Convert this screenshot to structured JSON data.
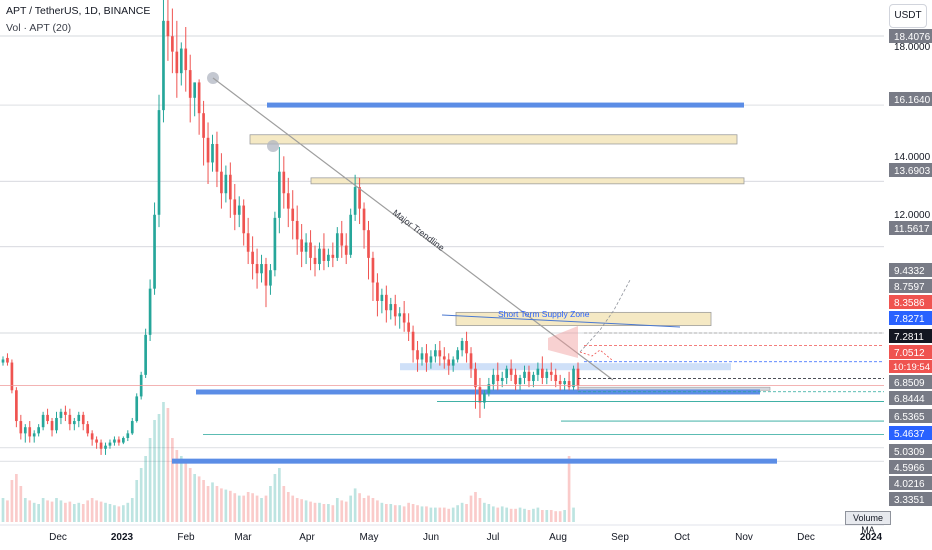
{
  "header": {
    "symbol_line": "APT / TetherUS, 1D, BINANCE",
    "volume_line": "Vol · APT (20)"
  },
  "toolbar": {
    "unit_label": "USDT"
  },
  "volume_ma_label": "Volume MA",
  "countdown": "10:19:54",
  "colors": {
    "up": "#26a69a",
    "down": "#ef5350",
    "blue_zone": "#5b8de6",
    "yellow_zone": "#f5e9c4",
    "trendline": "#9e9e9e"
  },
  "chart_data": {
    "type": "candlestick",
    "title": "APT / TetherUS, 1D, BINANCE",
    "x_ticks": [
      "Dec",
      "2023",
      "Feb",
      "Mar",
      "Apr",
      "May",
      "Jun",
      "Jul",
      "Aug",
      "Sep",
      "Oct",
      "Nov",
      "Dec",
      "2024"
    ],
    "y_range": [
      3.0,
      20.0
    ],
    "price_labels": [
      {
        "value": "18.4076",
        "style": "gray"
      },
      {
        "value": "18.0000",
        "style": "plain"
      },
      {
        "value": "16.1640",
        "style": "gray"
      },
      {
        "value": "14.0000",
        "style": "plain"
      },
      {
        "value": "13.6903",
        "style": "gray"
      },
      {
        "value": "12.0000",
        "style": "plain"
      },
      {
        "value": "11.5617",
        "style": "gray"
      },
      {
        "value": "9.4332",
        "style": "gray"
      },
      {
        "value": "8.7597",
        "style": "gray"
      },
      {
        "value": "8.3586",
        "style": "red"
      },
      {
        "value": "7.8271",
        "style": "blue"
      },
      {
        "value": "7.2811",
        "style": "dark"
      },
      {
        "value": "7.0512",
        "style": "red"
      },
      {
        "value": "6.8509",
        "style": "gray"
      },
      {
        "value": "6.8444",
        "style": "gray"
      },
      {
        "value": "6.5365",
        "style": "gray"
      },
      {
        "value": "5.4637",
        "style": "blue"
      },
      {
        "value": "5.0309",
        "style": "gray"
      },
      {
        "value": "4.5966",
        "style": "gray"
      },
      {
        "value": "4.0216",
        "style": "gray"
      },
      {
        "value": "3.3351",
        "style": "gray"
      }
    ],
    "zones": [
      {
        "kind": "blue",
        "price": 16.164
      },
      {
        "kind": "yellow",
        "price_low": 14.9,
        "price_high": 15.2
      },
      {
        "kind": "yellow",
        "price_low": 13.65,
        "price_high": 13.8
      },
      {
        "kind": "yellow",
        "price_low": 9.0,
        "price_high": 9.43
      },
      {
        "kind": "light-blue",
        "price_low": 7.55,
        "price_high": 7.78
      },
      {
        "kind": "gray",
        "price_low": 6.9,
        "price_high": 7.0
      },
      {
        "kind": "blue",
        "price": 6.844
      },
      {
        "kind": "blue",
        "price": 4.597
      }
    ],
    "annotations": [
      "Major Trendline",
      "Short Term Supply Zone"
    ],
    "candles": [
      [
        7.8,
        8.0,
        7.9,
        7.7
      ],
      [
        7.95,
        8.1,
        7.8,
        7.7
      ],
      [
        7.8,
        7.9,
        6.9,
        6.8
      ],
      [
        6.9,
        7.0,
        5.9,
        5.7
      ],
      [
        5.9,
        6.1,
        5.5,
        5.3
      ],
      [
        5.5,
        5.8,
        5.7,
        5.2
      ],
      [
        5.7,
        5.9,
        5.4,
        5.2
      ],
      [
        5.4,
        5.6,
        5.5,
        5.2
      ],
      [
        5.5,
        5.8,
        5.7,
        5.4
      ],
      [
        5.7,
        6.2,
        6.1,
        5.6
      ],
      [
        6.1,
        6.3,
        5.9,
        5.8
      ],
      [
        5.9,
        6.0,
        5.6,
        5.4
      ],
      [
        5.6,
        6.2,
        6.0,
        5.5
      ],
      [
        6.0,
        6.3,
        6.2,
        5.8
      ],
      [
        6.2,
        6.4,
        6.1,
        5.9
      ],
      [
        6.1,
        6.3,
        5.8,
        5.6
      ],
      [
        5.8,
        6.0,
        5.9,
        5.6
      ],
      [
        5.9,
        6.2,
        6.1,
        5.7
      ],
      [
        6.1,
        6.2,
        5.8,
        5.6
      ],
      [
        5.8,
        5.9,
        5.5,
        5.4
      ],
      [
        5.5,
        5.6,
        5.3,
        5.1
      ],
      [
        5.3,
        5.4,
        5.2,
        5.0
      ],
      [
        5.2,
        5.3,
        5.0,
        4.8
      ],
      [
        5.0,
        5.2,
        5.1,
        4.8
      ],
      [
        5.1,
        5.3,
        5.2,
        5.0
      ],
      [
        5.2,
        5.4,
        5.3,
        5.1
      ],
      [
        5.3,
        5.4,
        5.2,
        5.1
      ],
      [
        5.2,
        5.4,
        5.35,
        5.15
      ],
      [
        5.35,
        5.6,
        5.5,
        5.25
      ],
      [
        5.5,
        6.0,
        5.9,
        5.45
      ],
      [
        5.9,
        6.8,
        6.7,
        5.85
      ],
      [
        6.7,
        7.5,
        7.4,
        6.6
      ],
      [
        7.4,
        8.9,
        8.7,
        7.3
      ],
      [
        8.7,
        10.5,
        10.2,
        8.5
      ],
      [
        10.2,
        13.0,
        12.6,
        10.0
      ],
      [
        12.6,
        16.5,
        16.0,
        12.2
      ],
      [
        16.0,
        19.8,
        18.9,
        15.6
      ],
      [
        18.9,
        20.0,
        18.4,
        17.6
      ],
      [
        18.4,
        19.3,
        17.9,
        17.2
      ],
      [
        17.9,
        18.9,
        17.2,
        16.4
      ],
      [
        17.2,
        18.2,
        18.0,
        16.8
      ],
      [
        18.0,
        18.7,
        17.3,
        16.6
      ],
      [
        17.3,
        17.8,
        16.4,
        15.6
      ],
      [
        16.4,
        16.9,
        16.9,
        15.8
      ],
      [
        16.9,
        17.0,
        15.9,
        15.2
      ],
      [
        15.9,
        16.3,
        15.1,
        14.2
      ],
      [
        15.1,
        15.6,
        14.3,
        13.6
      ],
      [
        14.3,
        15.2,
        14.9,
        14.0
      ],
      [
        14.9,
        15.3,
        14.0,
        13.5
      ],
      [
        14.0,
        14.6,
        13.3,
        12.8
      ],
      [
        13.3,
        14.2,
        13.9,
        13.0
      ],
      [
        13.9,
        14.3,
        13.1,
        12.5
      ],
      [
        13.1,
        13.6,
        12.6,
        12.1
      ],
      [
        12.6,
        13.2,
        12.9,
        12.2
      ],
      [
        12.9,
        13.1,
        12.0,
        11.6
      ],
      [
        12.0,
        12.5,
        11.4,
        11.0
      ],
      [
        11.4,
        11.9,
        11.0,
        10.5
      ],
      [
        11.0,
        11.5,
        10.7,
        10.2
      ],
      [
        10.7,
        11.3,
        11.0,
        10.4
      ],
      [
        11.0,
        11.2,
        10.3,
        9.6
      ],
      [
        10.3,
        11.0,
        10.8,
        10.0
      ],
      [
        10.8,
        12.7,
        12.5,
        10.6
      ],
      [
        12.5,
        14.8,
        14.0,
        12.0
      ],
      [
        14.0,
        14.5,
        13.3,
        12.8
      ],
      [
        13.3,
        13.8,
        12.8,
        12.2
      ],
      [
        12.8,
        13.4,
        12.4,
        11.8
      ],
      [
        12.4,
        12.9,
        11.8,
        11.3
      ],
      [
        11.8,
        12.3,
        11.4,
        10.9
      ],
      [
        11.4,
        12.0,
        11.7,
        11.0
      ],
      [
        11.7,
        12.1,
        11.2,
        10.8
      ],
      [
        11.2,
        11.6,
        11.0,
        10.6
      ],
      [
        11.0,
        11.7,
        11.5,
        10.8
      ],
      [
        11.5,
        12.0,
        11.1,
        10.8
      ],
      [
        11.1,
        11.5,
        11.3,
        10.9
      ],
      [
        11.3,
        11.7,
        11.2,
        10.9
      ],
      [
        11.2,
        12.2,
        12.0,
        11.1
      ],
      [
        12.0,
        12.4,
        11.6,
        11.2
      ],
      [
        11.6,
        12.0,
        11.3,
        11.0
      ],
      [
        11.3,
        12.8,
        12.6,
        11.2
      ],
      [
        12.6,
        13.9,
        13.5,
        12.4
      ],
      [
        13.5,
        13.8,
        12.8,
        12.3
      ],
      [
        12.8,
        13.0,
        12.1,
        11.5
      ],
      [
        12.1,
        12.4,
        11.2,
        10.5
      ],
      [
        11.2,
        11.4,
        10.4,
        9.8
      ],
      [
        10.4,
        10.7,
        9.8,
        9.3
      ],
      [
        9.8,
        10.2,
        10.0,
        9.4
      ],
      [
        10.0,
        10.3,
        9.5,
        9.1
      ],
      [
        9.5,
        9.9,
        9.7,
        9.2
      ],
      [
        9.7,
        10.0,
        9.3,
        9.0
      ],
      [
        9.3,
        9.6,
        9.4,
        8.9
      ],
      [
        9.4,
        9.8,
        9.1,
        8.8
      ],
      [
        9.1,
        9.4,
        8.8,
        8.5
      ],
      [
        8.8,
        9.0,
        8.2,
        7.8
      ],
      [
        8.2,
        8.5,
        7.9,
        7.5
      ],
      [
        7.9,
        8.3,
        8.1,
        7.7
      ],
      [
        8.1,
        8.4,
        7.8,
        7.5
      ],
      [
        7.8,
        8.2,
        8.0,
        7.6
      ],
      [
        8.0,
        8.4,
        8.2,
        7.8
      ],
      [
        8.2,
        8.5,
        8.0,
        7.7
      ],
      [
        8.0,
        8.3,
        7.9,
        7.6
      ],
      [
        7.9,
        8.1,
        7.7,
        7.4
      ],
      [
        7.7,
        8.0,
        7.9,
        7.5
      ],
      [
        7.9,
        8.3,
        8.2,
        7.8
      ],
      [
        8.2,
        8.6,
        8.5,
        8.0
      ],
      [
        8.5,
        8.8,
        8.1,
        7.8
      ],
      [
        8.1,
        8.3,
        7.6,
        7.3
      ],
      [
        7.6,
        7.8,
        7.0,
        6.3
      ],
      [
        7.0,
        7.3,
        6.5,
        6.0
      ],
      [
        6.5,
        6.9,
        6.8,
        6.3
      ],
      [
        6.8,
        7.3,
        7.1,
        6.7
      ],
      [
        7.1,
        7.6,
        7.4,
        6.9
      ],
      [
        7.4,
        7.8,
        7.2,
        6.9
      ],
      [
        7.2,
        7.5,
        7.3,
        7.0
      ],
      [
        7.3,
        7.7,
        7.6,
        7.1
      ],
      [
        7.6,
        7.9,
        7.4,
        7.2
      ],
      [
        7.4,
        7.6,
        7.1,
        6.9
      ],
      [
        7.1,
        7.4,
        7.3,
        6.9
      ],
      [
        7.3,
        7.7,
        7.5,
        7.1
      ],
      [
        7.5,
        7.7,
        7.2,
        7.0
      ],
      [
        7.2,
        7.5,
        7.4,
        7.0
      ],
      [
        7.4,
        7.8,
        7.6,
        7.2
      ],
      [
        7.6,
        8.0,
        7.3,
        7.1
      ],
      [
        7.3,
        7.6,
        7.5,
        7.1
      ],
      [
        7.5,
        7.8,
        7.4,
        7.2
      ],
      [
        7.4,
        7.6,
        7.2,
        7.0
      ],
      [
        7.2,
        7.4,
        7.1,
        6.9
      ],
      [
        7.1,
        7.3,
        7.2,
        6.9
      ],
      [
        7.2,
        7.5,
        7.0,
        6.9
      ],
      [
        7.0,
        7.7,
        7.6,
        6.9
      ],
      [
        7.6,
        7.8,
        7.05,
        6.9
      ]
    ],
    "volume": [
      0.2,
      0.18,
      0.35,
      0.4,
      0.3,
      0.2,
      0.18,
      0.16,
      0.15,
      0.2,
      0.18,
      0.17,
      0.2,
      0.18,
      0.16,
      0.17,
      0.15,
      0.16,
      0.15,
      0.18,
      0.2,
      0.18,
      0.17,
      0.16,
      0.15,
      0.14,
      0.13,
      0.14,
      0.16,
      0.2,
      0.35,
      0.45,
      0.55,
      0.7,
      0.85,
      0.9,
      1.0,
      0.95,
      0.7,
      0.6,
      0.55,
      0.5,
      0.45,
      0.4,
      0.38,
      0.35,
      0.3,
      0.33,
      0.3,
      0.28,
      0.27,
      0.26,
      0.24,
      0.22,
      0.22,
      0.25,
      0.24,
      0.22,
      0.2,
      0.22,
      0.3,
      0.4,
      0.45,
      0.3,
      0.25,
      0.22,
      0.2,
      0.19,
      0.18,
      0.17,
      0.16,
      0.16,
      0.15,
      0.15,
      0.14,
      0.2,
      0.18,
      0.17,
      0.22,
      0.28,
      0.24,
      0.2,
      0.22,
      0.2,
      0.18,
      0.16,
      0.15,
      0.15,
      0.14,
      0.14,
      0.13,
      0.16,
      0.15,
      0.14,
      0.13,
      0.13,
      0.12,
      0.12,
      0.12,
      0.12,
      0.11,
      0.12,
      0.14,
      0.16,
      0.15,
      0.22,
      0.25,
      0.2,
      0.16,
      0.15,
      0.13,
      0.12,
      0.13,
      0.12,
      0.11,
      0.11,
      0.12,
      0.11,
      0.1,
      0.11,
      0.12,
      0.1,
      0.1,
      0.1,
      0.09,
      0.09,
      0.1,
      0.55,
      0.12
    ]
  }
}
